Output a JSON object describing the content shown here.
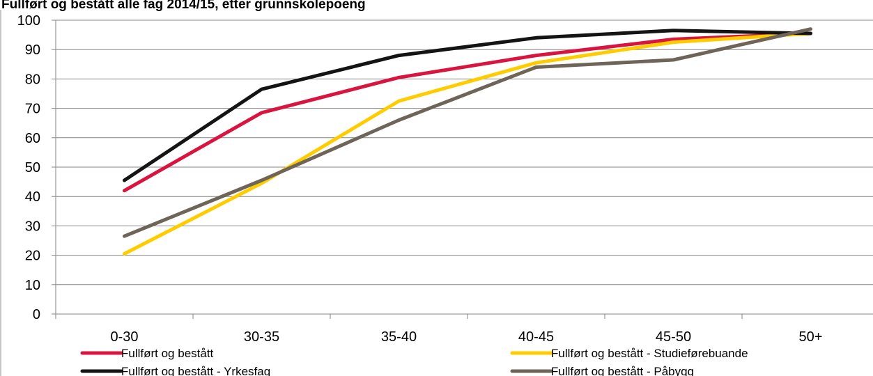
{
  "chart_data": {
    "type": "line",
    "title": "Fullført og bestått alle fag 2014/15, etter grunnskolepoeng",
    "xlabel": "",
    "ylabel": "",
    "categories": [
      "0-30",
      "30-35",
      "35-40",
      "40-45",
      "45-50",
      "50+"
    ],
    "ylim": [
      0,
      100
    ],
    "yticks": [
      0,
      10,
      20,
      30,
      40,
      50,
      60,
      70,
      80,
      90,
      100
    ],
    "grid": true,
    "legend": "bottom",
    "series": [
      {
        "name": "Fullført og bestått",
        "color": "#D9143F",
        "values": [
          42,
          68.5,
          80.5,
          88,
          93.5,
          95.5
        ]
      },
      {
        "name": "Fullført og bestått - Studieførebuande",
        "color": "#FFCC00",
        "values": [
          20.5,
          44.5,
          72.5,
          85.5,
          92.5,
          95.5
        ]
      },
      {
        "name": "Fullført og bestått - Yrkesfag",
        "color": "#141414",
        "values": [
          45.5,
          76.5,
          88,
          94,
          96.5,
          95.5
        ]
      },
      {
        "name": "Fullført og bestått - Påbygg",
        "color": "#6E6457",
        "values": [
          26.5,
          45.5,
          66,
          84,
          86.5,
          97
        ]
      }
    ]
  }
}
